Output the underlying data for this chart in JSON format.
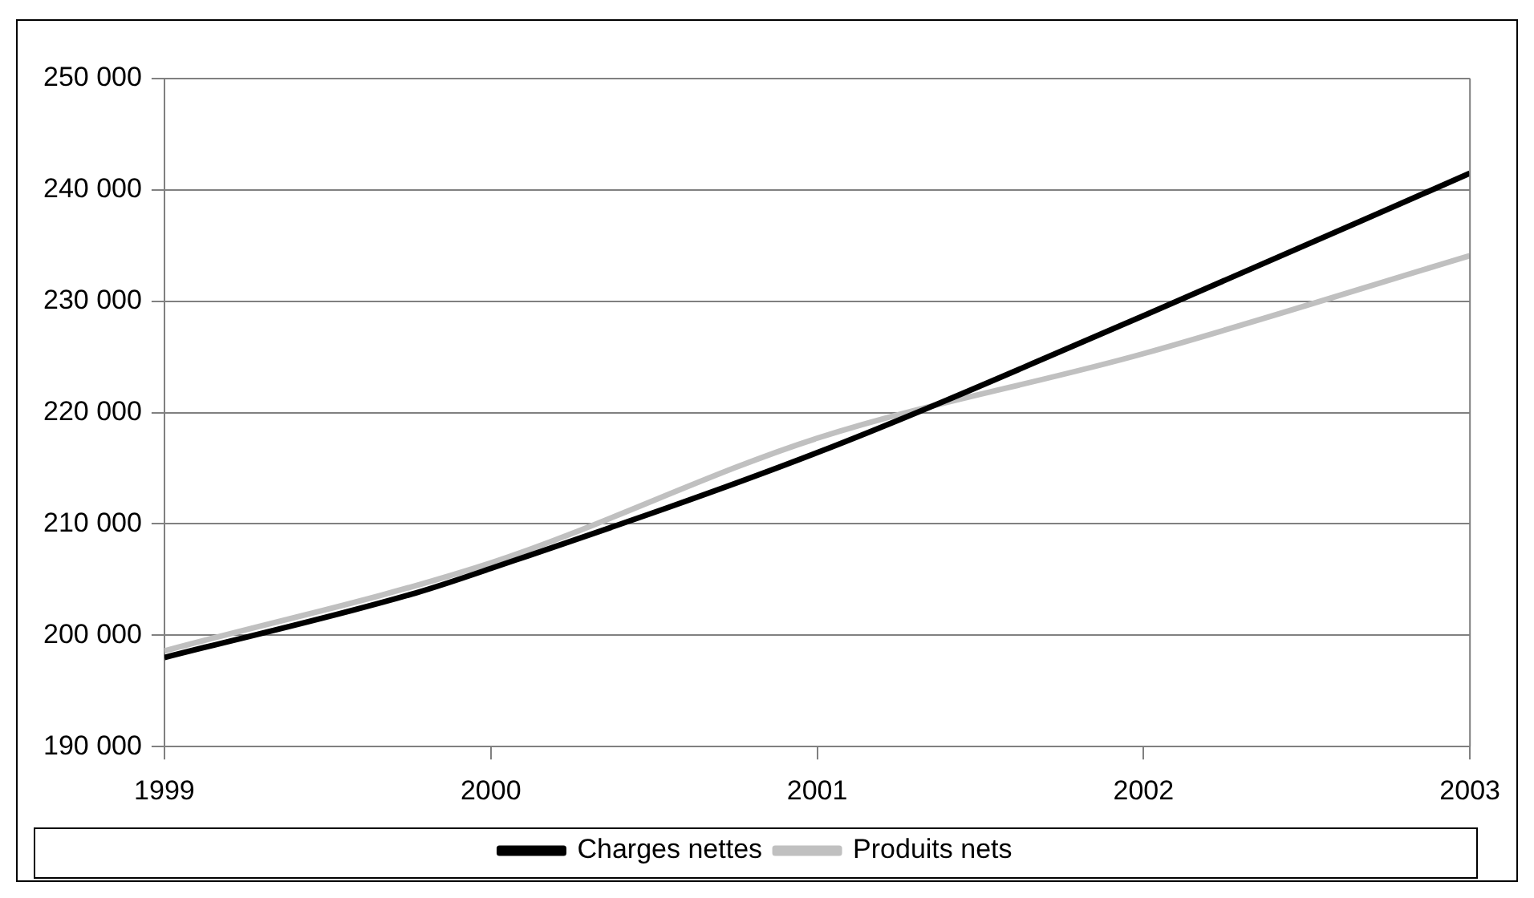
{
  "chart_data": {
    "type": "line",
    "x": [
      1999,
      1999.77,
      2000,
      2001,
      2002,
      2003
    ],
    "series": [
      {
        "name": "Charges nettes",
        "color": "#000000",
        "values": [
          198000,
          203800,
          206000,
          216400,
          228700,
          241500
        ]
      },
      {
        "name": "Produits nets",
        "color": "#c0c0c0",
        "x": [
          1999,
          2000,
          2001,
          2002,
          2003
        ],
        "values": [
          198600,
          206500,
          217700,
          225300,
          234100
        ]
      }
    ],
    "xlim": [
      1999,
      2003
    ],
    "xticks": [
      1999,
      2000,
      2001,
      2002,
      2003
    ],
    "ylim": [
      190000,
      250000
    ],
    "yticks": [
      {
        "value": 190000,
        "label": "190 000"
      },
      {
        "value": 200000,
        "label": "200 000"
      },
      {
        "value": 210000,
        "label": "210 000"
      },
      {
        "value": 220000,
        "label": "220 000"
      },
      {
        "value": 230000,
        "label": "230 000"
      },
      {
        "value": 240000,
        "label": "240 000"
      },
      {
        "value": 250000,
        "label": "250 000"
      }
    ],
    "grid": "y",
    "legend": "bottom",
    "marker": "none",
    "line_style": "solid"
  }
}
